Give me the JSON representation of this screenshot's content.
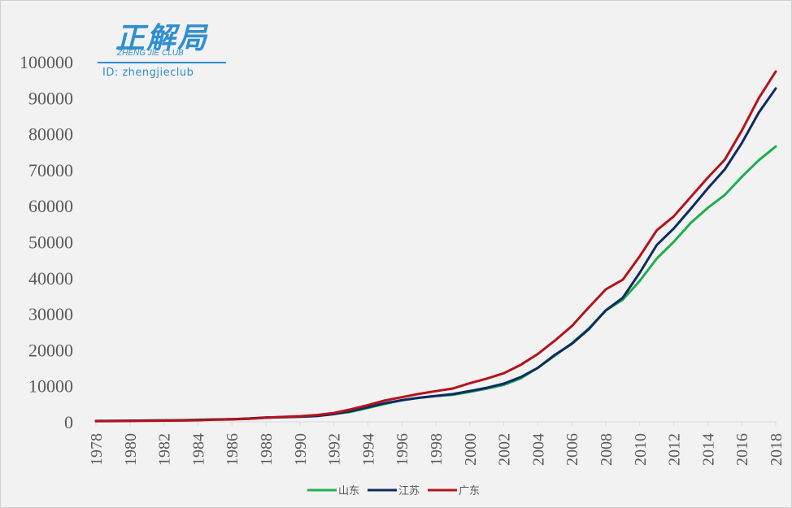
{
  "logo": {
    "title": "正解局",
    "subtitle": "ZHENG JIE CLUB",
    "id_text": "ID: zhengjieclub"
  },
  "chart_data": {
    "type": "line",
    "title": "",
    "xlabel": "",
    "ylabel": "",
    "ylim": [
      0,
      100000
    ],
    "yticks": [
      0,
      10000,
      20000,
      30000,
      40000,
      50000,
      60000,
      70000,
      80000,
      90000,
      100000
    ],
    "xticks": [
      "1978",
      "1980",
      "1982",
      "1984",
      "1986",
      "1988",
      "1990",
      "1992",
      "1994",
      "1996",
      "1998",
      "2000",
      "2002",
      "2004",
      "2006",
      "2008",
      "2010",
      "2012",
      "2014",
      "2016",
      "2018"
    ],
    "x": [
      1978,
      1979,
      1980,
      1981,
      1982,
      1983,
      1984,
      1985,
      1986,
      1987,
      1988,
      1989,
      1990,
      1991,
      1992,
      1993,
      1994,
      1995,
      1996,
      1997,
      1998,
      1999,
      2000,
      2001,
      2002,
      2003,
      2004,
      2005,
      2006,
      2007,
      2008,
      2009,
      2010,
      2011,
      2012,
      2013,
      2014,
      2015,
      2016,
      2017,
      2018
    ],
    "grid": false,
    "legend_position": "bottom",
    "series": [
      {
        "name": "山东",
        "color": "#1fae4e",
        "values": [
          225,
          240,
          290,
          350,
          400,
          460,
          580,
          680,
          740,
          890,
          1120,
          1290,
          1510,
          1810,
          2200,
          2780,
          3870,
          5000,
          6000,
          6650,
          7160,
          7490,
          8340,
          9200,
          10280,
          12080,
          15020,
          18370,
          21850,
          25960,
          30930,
          33900,
          39170,
          45360,
          50010,
          55230,
          59430,
          63000,
          68020,
          72630,
          76470
        ]
      },
      {
        "name": "江苏",
        "color": "#0e2a63",
        "values": [
          250,
          300,
          320,
          350,
          390,
          440,
          520,
          650,
          740,
          920,
          1210,
          1320,
          1420,
          1600,
          2140,
          2990,
          4060,
          5160,
          6000,
          6680,
          7200,
          7700,
          8550,
          9460,
          10610,
          12440,
          15000,
          18600,
          21650,
          25740,
          30980,
          34460,
          41430,
          49110,
          53700,
          59160,
          64830,
          70120,
          77390,
          85870,
          92600
        ]
      },
      {
        "name": "广东",
        "color": "#b5121b",
        "values": [
          185,
          210,
          250,
          290,
          340,
          370,
          460,
          580,
          670,
          850,
          1160,
          1380,
          1560,
          1890,
          2450,
          3470,
          4620,
          5930,
          6840,
          7770,
          8530,
          9250,
          10740,
          12000,
          13500,
          15840,
          18860,
          22560,
          26590,
          31780,
          36800,
          39480,
          46010,
          53210,
          57070,
          62470,
          67810,
          72810,
          80850,
          89880,
          97280
        ]
      }
    ]
  }
}
